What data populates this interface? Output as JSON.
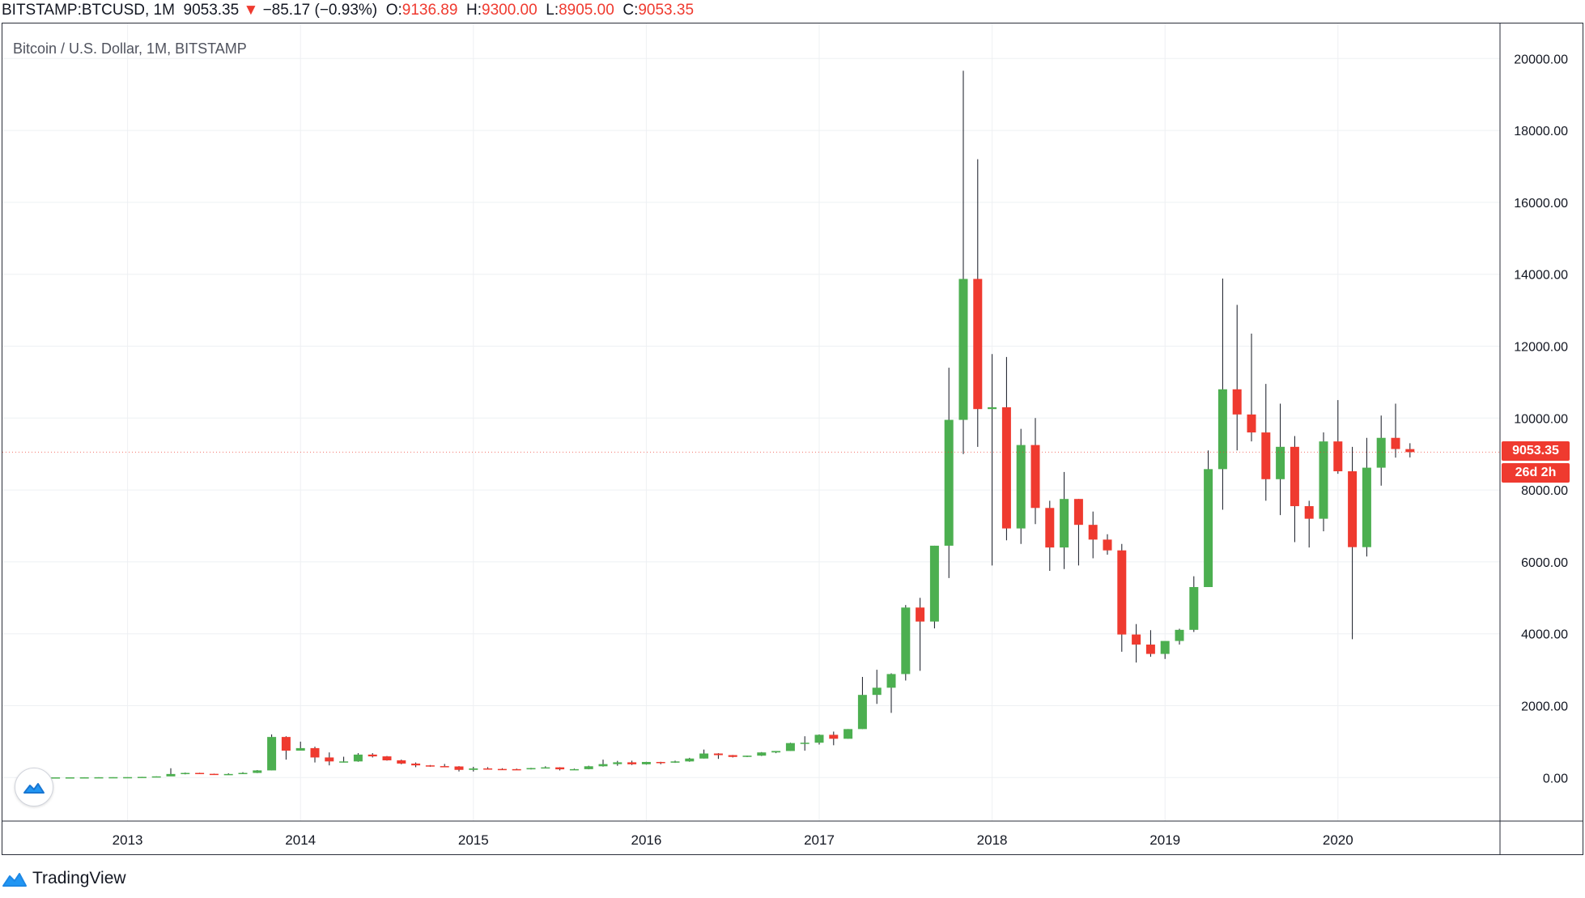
{
  "header": {
    "symbol": "BITSTAMP:BTCUSD, 1M",
    "last": "9053.35",
    "change_arrow": "▼",
    "change": "−85.17 (−0.93%)",
    "open_label": "O:",
    "open": "9136.89",
    "high_label": "H:",
    "high": "9300.00",
    "low_label": "L:",
    "low": "8905.00",
    "close_label": "C:",
    "close": "9053.35"
  },
  "legend": {
    "title": "Bitcoin / U.S. Dollar, 1M, BITSTAMP"
  },
  "price_tag": {
    "price": "9053.35",
    "countdown": "26d 2h"
  },
  "footer": {
    "brand": "TradingView",
    "logo_icon": "tradingview-cloud-icon"
  },
  "colors": {
    "up": "#4caf50",
    "down": "#ef3a2f",
    "grid": "#eef0f3",
    "wick": "#131722"
  },
  "chart_data": {
    "type": "candlestick",
    "title": "Bitcoin / U.S. Dollar, 1M, BITSTAMP",
    "interval": "1M",
    "ylim": [
      -1100,
      20600
    ],
    "y_ticks": [
      "0.00",
      "2000.00",
      "4000.00",
      "6000.00",
      "8000.00",
      "10000.00",
      "12000.00",
      "14000.00",
      "16000.00",
      "18000.00",
      "20000.00"
    ],
    "y_tick_values": [
      0,
      2000,
      4000,
      6000,
      8000,
      10000,
      12000,
      14000,
      16000,
      18000,
      20000
    ],
    "x_ticks": [
      "2013",
      "2014",
      "2015",
      "2016",
      "2017",
      "2018",
      "2019",
      "2020"
    ],
    "x_tick_index": [
      7,
      19,
      31,
      43,
      55,
      67,
      79,
      91
    ],
    "candles": [
      [
        5,
        5,
        5,
        5
      ],
      [
        5,
        5,
        5,
        5
      ],
      [
        5,
        6,
        5,
        6
      ],
      [
        6,
        7,
        6,
        7
      ],
      [
        7,
        8,
        7,
        8
      ],
      [
        8,
        10,
        8,
        10
      ],
      [
        10,
        12,
        10,
        12
      ],
      [
        12,
        14,
        12,
        13
      ],
      [
        13,
        20,
        13,
        20
      ],
      [
        20,
        34,
        20,
        34
      ],
      [
        34,
        260,
        50,
        100
      ],
      [
        100,
        140,
        90,
        130
      ],
      [
        130,
        135,
        100,
        105
      ],
      [
        105,
        110,
        80,
        95
      ],
      [
        95,
        120,
        85,
        100
      ],
      [
        100,
        150,
        100,
        130
      ],
      [
        130,
        210,
        125,
        200
      ],
      [
        200,
        1200,
        200,
        1130
      ],
      [
        1130,
        1150,
        500,
        750
      ],
      [
        750,
        1000,
        750,
        820
      ],
      [
        820,
        860,
        420,
        560
      ],
      [
        560,
        700,
        340,
        450
      ],
      [
        450,
        580,
        420,
        450
      ],
      [
        450,
        680,
        440,
        640
      ],
      [
        640,
        680,
        560,
        590
      ],
      [
        590,
        600,
        470,
        480
      ],
      [
        480,
        500,
        370,
        390
      ],
      [
        390,
        420,
        290,
        340
      ],
      [
        340,
        350,
        300,
        320
      ],
      [
        320,
        380,
        290,
        310
      ],
      [
        310,
        320,
        170,
        215
      ],
      [
        215,
        300,
        170,
        255
      ],
      [
        255,
        290,
        225,
        240
      ],
      [
        240,
        260,
        210,
        235
      ],
      [
        235,
        250,
        220,
        230
      ],
      [
        230,
        270,
        225,
        265
      ],
      [
        265,
        315,
        255,
        285
      ],
      [
        285,
        290,
        200,
        230
      ],
      [
        230,
        250,
        220,
        235
      ],
      [
        235,
        330,
        230,
        315
      ],
      [
        315,
        500,
        305,
        375
      ],
      [
        375,
        465,
        330,
        425
      ],
      [
        425,
        470,
        350,
        370
      ],
      [
        370,
        440,
        360,
        435
      ],
      [
        435,
        440,
        370,
        415
      ],
      [
        415,
        470,
        410,
        450
      ],
      [
        450,
        550,
        440,
        530
      ],
      [
        530,
        780,
        530,
        670
      ],
      [
        670,
        680,
        520,
        625
      ],
      [
        625,
        630,
        560,
        575
      ],
      [
        575,
        610,
        570,
        610
      ],
      [
        610,
        710,
        600,
        700
      ],
      [
        700,
        740,
        680,
        740
      ],
      [
        740,
        970,
        740,
        960
      ],
      [
        960,
        1150,
        750,
        970
      ],
      [
        970,
        1200,
        920,
        1190
      ],
      [
        1190,
        1280,
        900,
        1080
      ],
      [
        1080,
        1350,
        1080,
        1350
      ],
      [
        1350,
        2800,
        1350,
        2300
      ],
      [
        2300,
        3000,
        2050,
        2500
      ],
      [
        2500,
        2900,
        1800,
        2880
      ],
      [
        2880,
        4800,
        2700,
        4730
      ],
      [
        4730,
        5000,
        2970,
        4340
      ],
      [
        4340,
        6450,
        4150,
        6450
      ],
      [
        6450,
        11400,
        5550,
        9950
      ],
      [
        9950,
        19660,
        9000,
        13870
      ],
      [
        13870,
        17200,
        9200,
        10250
      ],
      [
        10250,
        11780,
        5900,
        10300
      ],
      [
        10300,
        11700,
        6600,
        6930
      ],
      [
        6930,
        9700,
        6500,
        9250
      ],
      [
        9250,
        10000,
        7050,
        7500
      ],
      [
        7500,
        7700,
        5750,
        6400
      ],
      [
        6400,
        8500,
        5800,
        7750
      ],
      [
        7750,
        7750,
        5900,
        7030
      ],
      [
        7030,
        7400,
        6100,
        6620
      ],
      [
        6620,
        6770,
        6200,
        6320
      ],
      [
        6320,
        6500,
        3500,
        3980
      ],
      [
        3980,
        4270,
        3200,
        3700
      ],
      [
        3700,
        4100,
        3360,
        3440
      ],
      [
        3440,
        3640,
        3300,
        3800
      ],
      [
        3800,
        4140,
        3700,
        4110
      ],
      [
        4110,
        5600,
        4050,
        5300
      ],
      [
        5300,
        9100,
        5300,
        8580
      ],
      [
        8580,
        13880,
        7450,
        10800
      ],
      [
        10800,
        13150,
        9100,
        10100
      ],
      [
        10100,
        12350,
        9350,
        9600
      ],
      [
        9600,
        10950,
        7700,
        8300
      ],
      [
        8300,
        10400,
        7300,
        9200
      ],
      [
        9200,
        9500,
        6550,
        7550
      ],
      [
        7550,
        7700,
        6400,
        7200
      ],
      [
        7200,
        9600,
        6850,
        9350
      ],
      [
        9350,
        10500,
        8450,
        8520
      ],
      [
        8520,
        9200,
        3850,
        6410
      ],
      [
        6410,
        9450,
        6150,
        8620
      ],
      [
        8620,
        10070,
        8120,
        9450
      ],
      [
        9450,
        10400,
        8900,
        9139
      ],
      [
        9137,
        9300,
        8905,
        9053
      ]
    ]
  }
}
